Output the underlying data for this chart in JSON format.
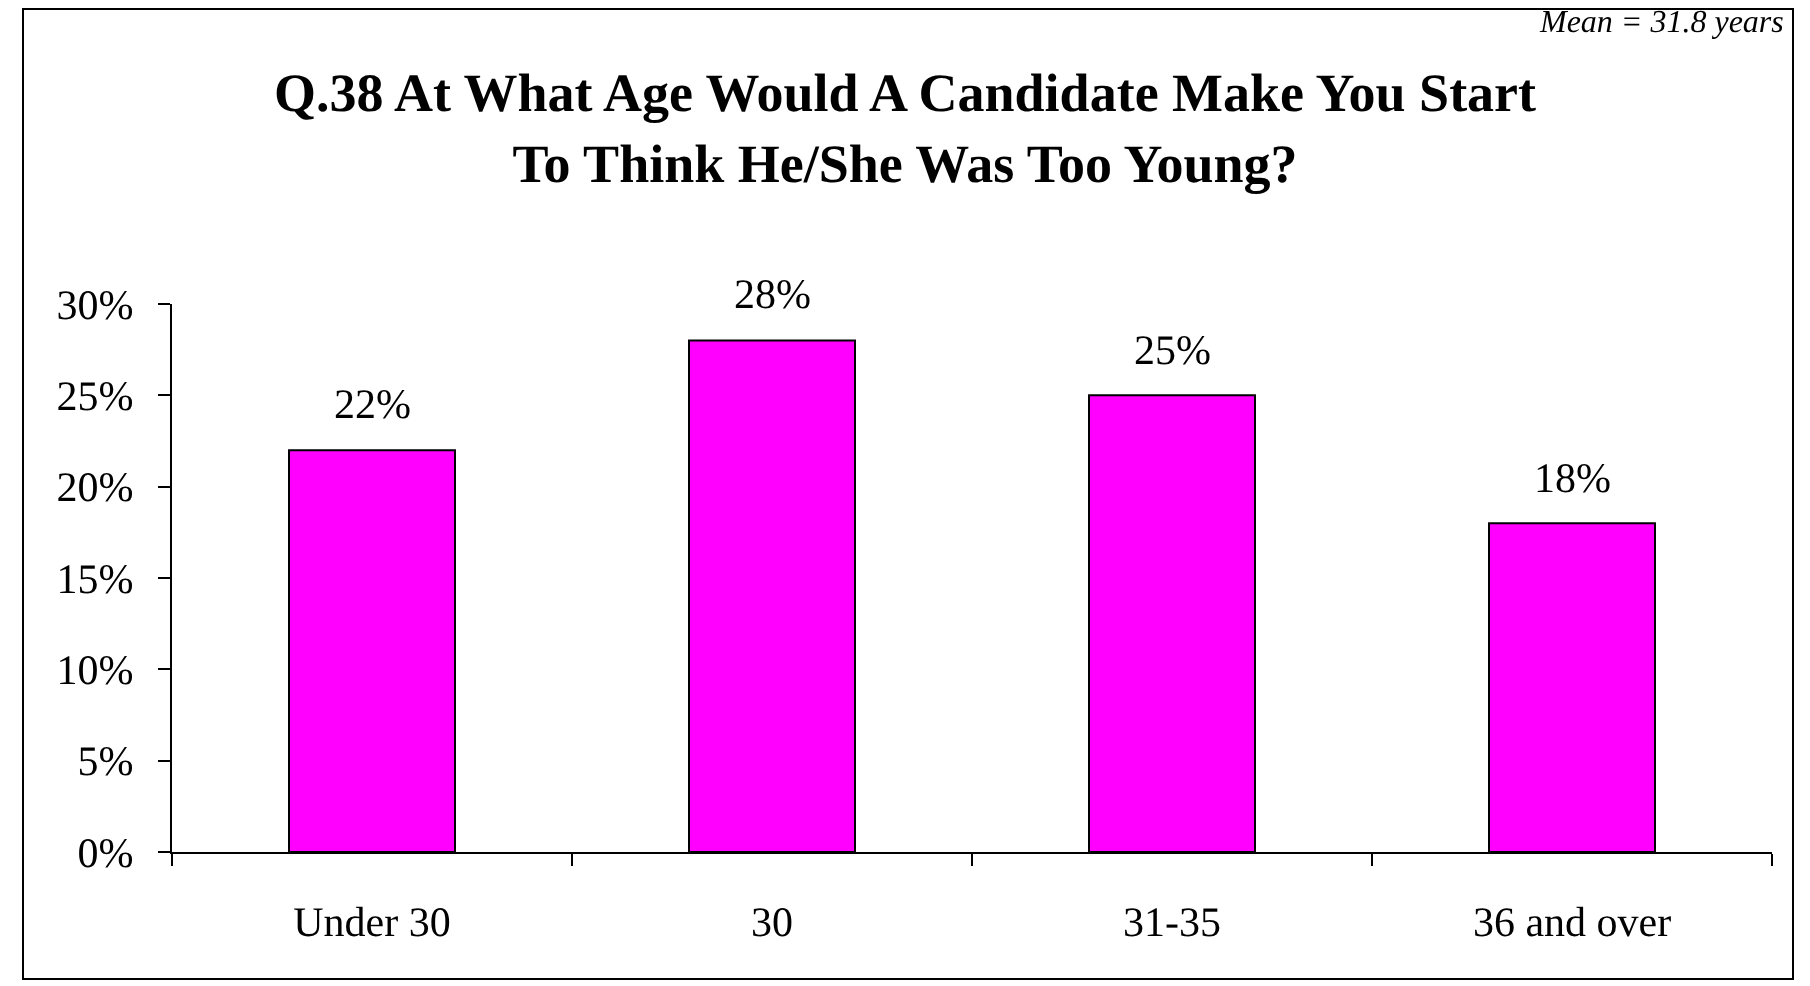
{
  "chart_data": {
    "type": "bar",
    "title": "Q.38 At What Age Would A Candidate Make You Start To Think He/She Was Too Young?",
    "categories": [
      "Under 30",
      "30",
      "31-35",
      "36 and over"
    ],
    "values": [
      22,
      28,
      25,
      18
    ],
    "color": "#ff00ff",
    "value_labels": [
      "22%",
      "28%",
      "25%",
      "18%"
    ],
    "ylim": [
      0,
      30
    ],
    "yticks": [
      {
        "value": 0,
        "label": "0%"
      },
      {
        "value": 5,
        "label": "5%"
      },
      {
        "value": 10,
        "label": "10%"
      },
      {
        "value": 15,
        "label": "15%"
      },
      {
        "value": 20,
        "label": "20%"
      },
      {
        "value": 25,
        "label": "25%"
      },
      {
        "value": 30,
        "label": "30%"
      }
    ],
    "grid": false,
    "annotations": [
      "Mean = 31.8 years"
    ]
  }
}
